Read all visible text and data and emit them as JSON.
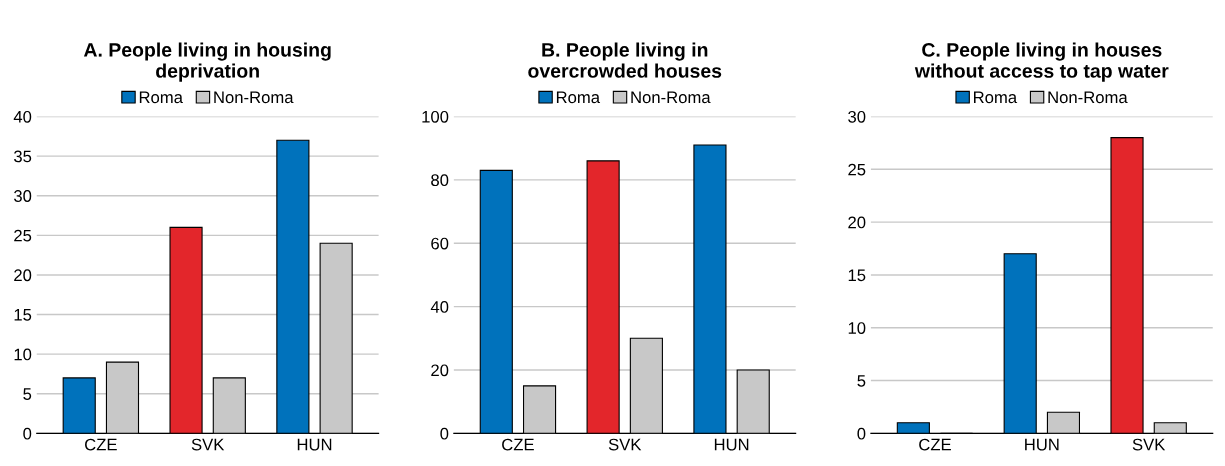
{
  "chart_data": [
    {
      "type": "bar",
      "title": "A. People living in housing\ndeprivation",
      "categories": [
        "CZE",
        "SVK",
        "HUN"
      ],
      "ylim": [
        0,
        40
      ],
      "yticks": [
        0,
        5,
        10,
        15,
        20,
        25,
        30,
        35,
        40
      ],
      "grid": "y",
      "legend": "top",
      "series": [
        {
          "name": "Roma",
          "color": "#0072bc",
          "colors": [
            "#0072bc",
            "#e3262b",
            "#0072bc"
          ],
          "values": [
            7,
            26,
            37
          ]
        },
        {
          "name": "Non-Roma",
          "color": "#c8c8c8",
          "values": [
            9,
            7,
            24
          ]
        }
      ]
    },
    {
      "type": "bar",
      "title": "B. People living in\novercrowded houses",
      "categories": [
        "CZE",
        "SVK",
        "HUN"
      ],
      "ylim": [
        0,
        100
      ],
      "yticks": [
        0,
        20,
        40,
        60,
        80,
        100
      ],
      "grid": "y",
      "legend": "top",
      "series": [
        {
          "name": "Roma",
          "color": "#0072bc",
          "colors": [
            "#0072bc",
            "#e3262b",
            "#0072bc"
          ],
          "values": [
            83,
            86,
            91
          ]
        },
        {
          "name": "Non-Roma",
          "color": "#c8c8c8",
          "values": [
            15,
            30,
            20
          ]
        }
      ]
    },
    {
      "type": "bar",
      "title": "C. People living in houses\nwithout access to tap water",
      "categories": [
        "CZE",
        "HUN",
        "SVK"
      ],
      "ylim": [
        0,
        30
      ],
      "yticks": [
        0,
        5,
        10,
        15,
        20,
        25,
        30
      ],
      "grid": "y",
      "legend": "top",
      "series": [
        {
          "name": "Roma",
          "color": "#0072bc",
          "colors": [
            "#0072bc",
            "#0072bc",
            "#e3262b"
          ],
          "values": [
            1,
            17,
            28
          ]
        },
        {
          "name": "Non-Roma",
          "color": "#c8c8c8",
          "values": [
            0,
            2,
            1
          ]
        }
      ]
    }
  ]
}
